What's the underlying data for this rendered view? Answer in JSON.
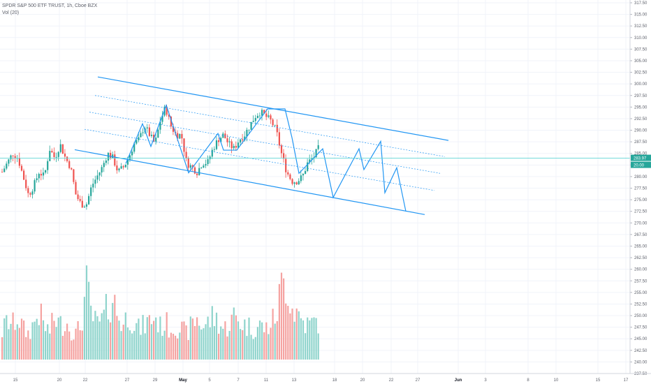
{
  "header": {
    "symbol_line": "SPDR S&P 500 ETF TRUST, 1h, Cboe BZX",
    "volume_line": "Vol (20)"
  },
  "price_axis": {
    "ticks": [
      "317.50",
      "315.00",
      "312.50",
      "310.00",
      "307.50",
      "305.00",
      "302.50",
      "300.00",
      "297.50",
      "295.00",
      "292.50",
      "290.00",
      "287.50",
      "285.00",
      "282.50",
      "280.00",
      "277.50",
      "275.00",
      "272.50",
      "270.00",
      "267.50",
      "265.00",
      "262.50",
      "260.00",
      "257.50",
      "255.00",
      "252.50",
      "250.00",
      "247.50",
      "245.00",
      "242.50",
      "240.00",
      "237.50"
    ],
    "current_price": "283.97",
    "current_volume_badge": "20.00"
  },
  "time_axis": {
    "ticks": [
      {
        "label": "15",
        "major": false
      },
      {
        "label": "20",
        "major": false
      },
      {
        "label": "22",
        "major": false
      },
      {
        "label": "27",
        "major": false
      },
      {
        "label": "29",
        "major": false
      },
      {
        "label": "May",
        "major": true
      },
      {
        "label": "5",
        "major": false
      },
      {
        "label": "7",
        "major": false
      },
      {
        "label": "11",
        "major": false
      },
      {
        "label": "13",
        "major": false
      },
      {
        "label": "18",
        "major": false
      },
      {
        "label": "20",
        "major": false
      },
      {
        "label": "22",
        "major": false
      },
      {
        "label": "27",
        "major": false
      },
      {
        "label": "Jun",
        "major": true
      },
      {
        "label": "3",
        "major": false
      },
      {
        "label": "8",
        "major": false
      },
      {
        "label": "10",
        "major": false
      },
      {
        "label": "15",
        "major": false
      },
      {
        "label": "17",
        "major": false
      }
    ]
  },
  "colors": {
    "up": "#26a69a",
    "down": "#ef5350",
    "drawing": "#2196f3",
    "current_line": "#5fd5d5",
    "grid": "#f0f3fa"
  },
  "chart_data": {
    "type": "candlestick",
    "instrument": "SPDR S&P 500 ETF TRUST",
    "interval": "1h",
    "exchange": "Cboe BZX",
    "ylim": [
      237.5,
      317.5
    ],
    "last_price": 283.97,
    "price_waypoints": [
      281,
      283,
      285,
      284,
      280,
      276,
      278,
      281,
      280,
      286,
      284,
      287,
      284,
      282,
      276,
      274,
      274,
      278,
      280,
      282,
      285,
      284,
      281,
      282,
      284,
      287,
      288,
      291,
      289,
      287,
      292,
      295,
      291,
      289,
      289,
      283,
      282,
      281,
      283,
      283,
      286,
      288,
      289,
      287,
      286,
      288,
      289,
      291,
      293,
      294,
      293,
      292,
      290,
      285,
      281,
      279,
      279,
      280,
      283,
      284,
      286
    ],
    "volume_waypoints": [
      0.32,
      0.45,
      0.4,
      0.5,
      0.35,
      0.3,
      0.42,
      0.55,
      0.38,
      0.33,
      0.48,
      0.4,
      0.45,
      0.36,
      0.3,
      0.4,
      0.85,
      0.5,
      0.4,
      0.45,
      0.6,
      0.72,
      0.5,
      0.4,
      0.55,
      0.42,
      0.35,
      0.4,
      0.45,
      0.5,
      0.38,
      0.42,
      0.36,
      0.4,
      0.35,
      0.3,
      0.4,
      0.48,
      0.38,
      0.42,
      0.5,
      0.45,
      0.35,
      0.4,
      0.5,
      0.45,
      0.4,
      0.38,
      0.36,
      0.4,
      0.35,
      0.42,
      0.5,
      0.85,
      0.92,
      0.6,
      0.55,
      0.45,
      0.4,
      0.42,
      0.45
    ],
    "drawings": {
      "channel_upper": [
        [
          140,
          301.5
        ],
        [
          642,
          287.8
        ]
      ],
      "channel_lower": [
        [
          107,
          285.8
        ],
        [
          608,
          271.8
        ]
      ],
      "channel_mid_lines": [
        [
          [
            136,
            297.5
          ],
          [
            637,
            284.3
          ]
        ],
        [
          [
            128,
            293.9
          ],
          [
            630,
            280.7
          ]
        ],
        [
          [
            121,
            290.2
          ],
          [
            622,
            277.0
          ]
        ]
      ],
      "projection_path": [
        [
          180,
          282.8
        ],
        [
          204,
          291.4
        ],
        [
          216,
          286.5
        ],
        [
          238,
          295.4
        ],
        [
          270,
          280.8
        ],
        [
          312,
          289.3
        ],
        [
          320,
          285.7
        ],
        [
          339,
          285.7
        ],
        [
          383,
          294.6
        ],
        [
          408,
          294.6
        ],
        [
          418,
          288.4
        ],
        [
          428,
          280.7
        ],
        [
          462,
          286.0
        ],
        [
          477,
          275.5
        ],
        [
          514,
          286.0
        ],
        [
          521,
          281.5
        ],
        [
          545,
          287.6
        ],
        [
          551,
          276.5
        ],
        [
          568,
          281.9
        ],
        [
          581,
          272.5
        ]
      ]
    }
  }
}
